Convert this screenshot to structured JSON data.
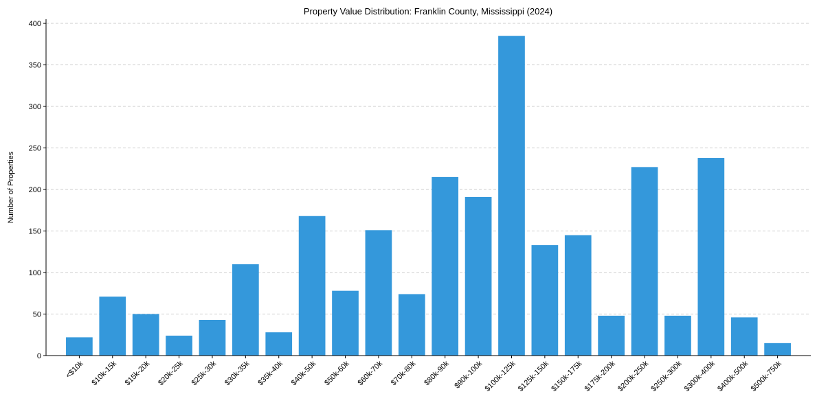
{
  "chart_data": {
    "type": "bar",
    "title": "Property Value Distribution: Franklin County, Mississippi (2024)",
    "xlabel": "",
    "ylabel": "Number of Properties",
    "ylim": [
      0,
      405
    ],
    "yticks": [
      0,
      50,
      100,
      150,
      200,
      250,
      300,
      350,
      400
    ],
    "grid": "y",
    "bar_color": "#3498db",
    "categories": [
      "<$10k",
      "$10k-15k",
      "$15k-20k",
      "$20k-25k",
      "$25k-30k",
      "$30k-35k",
      "$35k-40k",
      "$40k-50k",
      "$50k-60k",
      "$60k-70k",
      "$70k-80k",
      "$80k-90k",
      "$90k-100k",
      "$100k-125k",
      "$125k-150k",
      "$150k-175k",
      "$175k-200k",
      "$200k-250k",
      "$250k-300k",
      "$300k-400k",
      "$400k-500k",
      "$500k-750k"
    ],
    "values": [
      22,
      71,
      50,
      24,
      43,
      110,
      28,
      168,
      78,
      151,
      74,
      215,
      191,
      385,
      133,
      145,
      48,
      227,
      48,
      238,
      46,
      15
    ]
  }
}
